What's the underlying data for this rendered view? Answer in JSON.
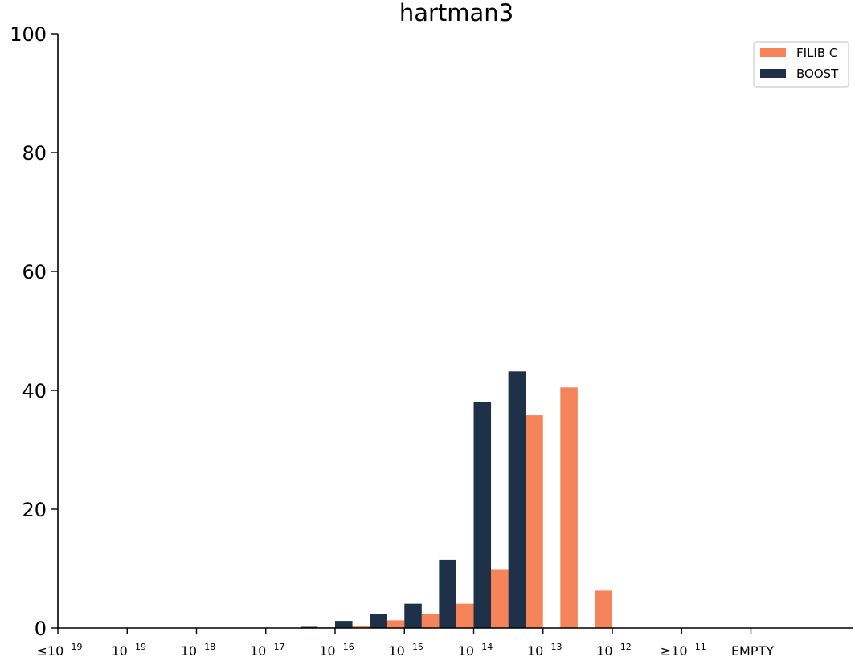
{
  "chart_data": {
    "type": "bar",
    "title": "hartman3",
    "xlabel": "",
    "ylabel": "",
    "ylim": [
      0,
      100
    ],
    "yticks": [
      "0",
      "20",
      "40",
      "60",
      "80",
      "100"
    ],
    "xtick_labels": [
      {
        "prefix": "≤",
        "base": "10",
        "exp": "−19"
      },
      {
        "prefix": "",
        "base": "10",
        "exp": "−19"
      },
      {
        "prefix": "",
        "base": "10",
        "exp": "−18"
      },
      {
        "prefix": "",
        "base": "10",
        "exp": "−17"
      },
      {
        "prefix": "",
        "base": "10",
        "exp": "−16"
      },
      {
        "prefix": "",
        "base": "10",
        "exp": "−15"
      },
      {
        "prefix": "",
        "base": "10",
        "exp": "−14"
      },
      {
        "prefix": "",
        "base": "10",
        "exp": "−13"
      },
      {
        "prefix": "",
        "base": "10",
        "exp": "−12"
      },
      {
        "prefix": "≥",
        "base": "10",
        "exp": "−11"
      },
      {
        "prefix": "",
        "base": "EMPTY",
        "exp": ""
      }
    ],
    "grid": false,
    "legend_position": "top-right",
    "series": [
      {
        "name": "FILIB C",
        "color": "#f5845a",
        "values": [
          0,
          0,
          0,
          0,
          0,
          0,
          0,
          0.1,
          0.4,
          1.3,
          2.3,
          4.1,
          9.8,
          35.8,
          40.5,
          6.3,
          0,
          0,
          0,
          0,
          0,
          0
        ]
      },
      {
        "name": "BOOST",
        "color": "#1e3148",
        "values": [
          0,
          0,
          0,
          0,
          0,
          0,
          0,
          0.2,
          1.2,
          2.3,
          4.1,
          11.5,
          38.1,
          43.2,
          0,
          0,
          0,
          0,
          0,
          0,
          0,
          0
        ]
      }
    ]
  }
}
